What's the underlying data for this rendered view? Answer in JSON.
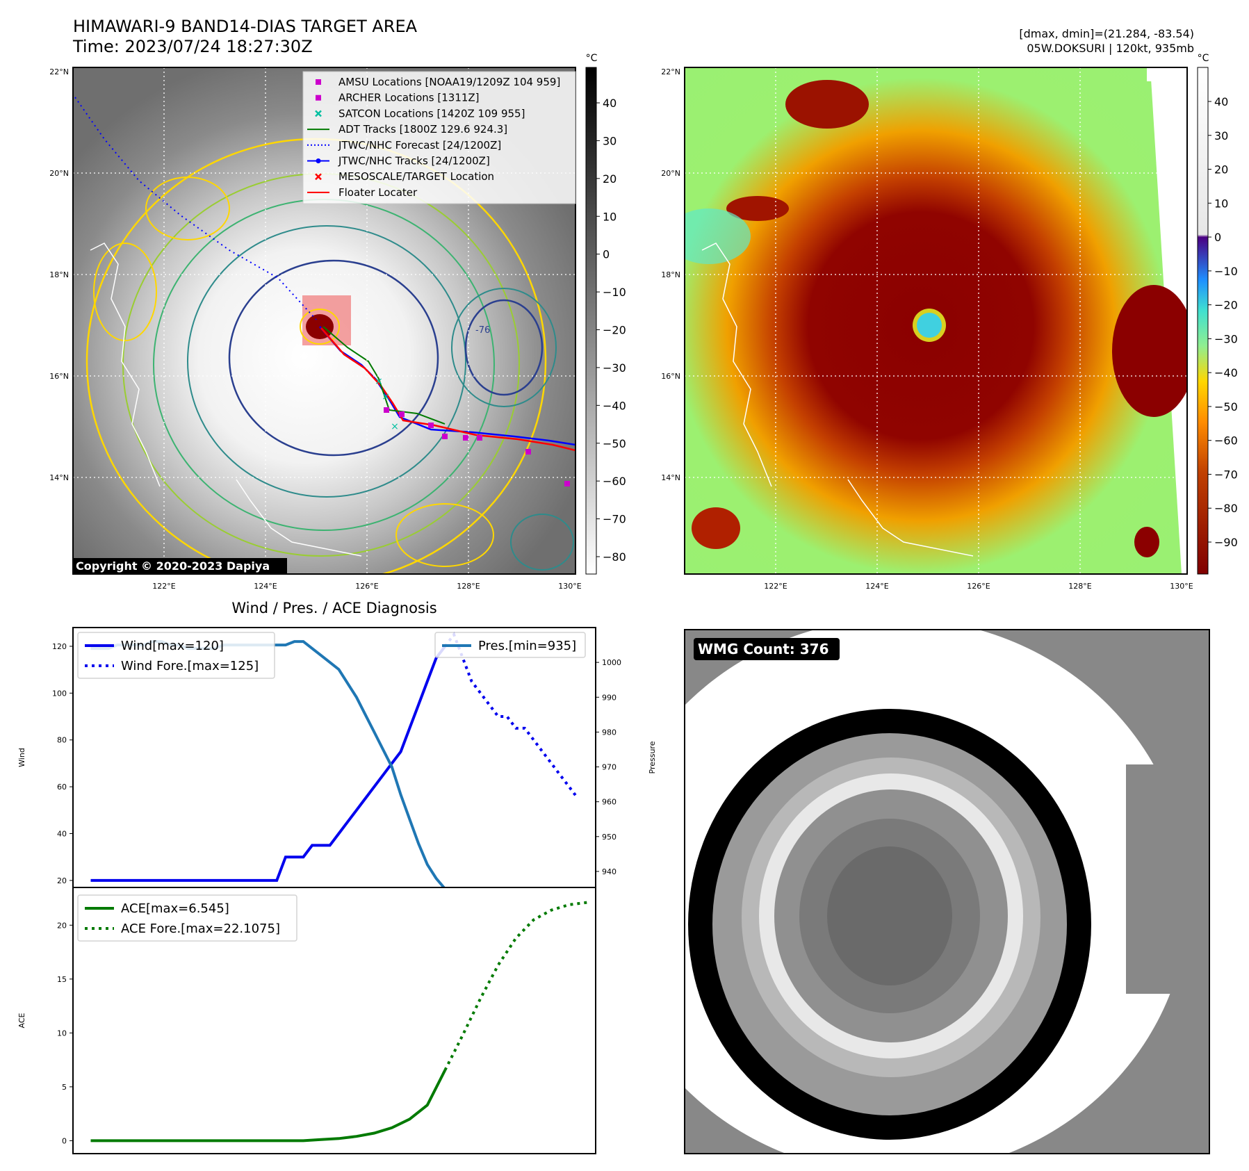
{
  "header": {
    "title": "HIMAWARI-9 BAND14-DIAS TARGET AREA",
    "time": "Time: 2023/07/24 18:27:30Z",
    "dminmax": "[dmax, dmin]=(21.284, -83.54)",
    "storm": "05W.DOKSURI | 120kt, 935mb"
  },
  "ir_panel": {
    "lat_ticks": [
      "22°N",
      "20°N",
      "18°N",
      "16°N",
      "14°N"
    ],
    "lon_ticks": [
      "122°E",
      "124°E",
      "126°E",
      "128°E",
      "130°E"
    ],
    "colorbar_unit": "°C",
    "colorbar_ticks": [
      "40",
      "30",
      "20",
      "10",
      "0",
      "−10",
      "−20",
      "−30",
      "−40",
      "−50",
      "−60",
      "−70",
      "−80"
    ],
    "copyright": "Copyright © 2020-2023 Dapiya",
    "legend": [
      {
        "label": "AMSU Locations [NOAA19/1209Z 104 959]",
        "marker": "square",
        "color": "#cc00cc"
      },
      {
        "label": "ARCHER Locations [1311Z]",
        "marker": "square",
        "color": "#cc00cc"
      },
      {
        "label": "SATCON Locations [1420Z 109 955]",
        "marker": "x",
        "color": "#00bfa0"
      },
      {
        "label": "ADT Tracks [1800Z 129.6 924.3]",
        "marker": "line",
        "color": "#007a00"
      },
      {
        "label": "JTWC/NHC Forecast [24/1200Z]",
        "marker": "dotted",
        "color": "#0000ff"
      },
      {
        "label": "JTWC/NHC Tracks [24/1200Z]",
        "marker": "line-dot",
        "color": "#0000ff"
      },
      {
        "label": "MESOSCALE/TARGET Location",
        "marker": "x",
        "color": "#ff0000"
      },
      {
        "label": "Floater Locater",
        "marker": "line",
        "color": "#ff0000"
      }
    ],
    "contour_label": "-76"
  },
  "color_panel": {
    "lat_ticks": [
      "22°N",
      "20°N",
      "18°N",
      "16°N",
      "14°N"
    ],
    "lon_ticks": [
      "122°E",
      "124°E",
      "126°E",
      "128°E",
      "130°E"
    ],
    "colorbar_unit": "°C",
    "colorbar_ticks": [
      "40",
      "30",
      "20",
      "10",
      "0",
      "−10",
      "−20",
      "−30",
      "−40",
      "−50",
      "−60",
      "−70",
      "−80",
      "−90"
    ]
  },
  "wmg_panel": {
    "label": "WMG Count: 376"
  },
  "chart_data": [
    {
      "type": "line",
      "title": "Wind / Pres. / ACE Diagnosis",
      "ylabel": "Wind",
      "ylabel_right": "Pressure",
      "ylim": [
        17,
        128
      ],
      "ylim_right": [
        935.4,
        1010.0
      ],
      "yticks": [
        20,
        40,
        60,
        80,
        100,
        120
      ],
      "yticks_right": [
        940,
        950,
        960,
        970,
        980,
        990,
        1000
      ],
      "x": [
        0,
        1,
        2,
        3,
        4,
        5,
        6,
        7,
        8,
        9,
        10,
        11,
        12,
        13,
        14,
        15,
        16,
        17,
        18,
        19,
        20,
        21,
        22,
        23,
        24,
        25,
        26,
        27,
        28,
        29,
        30,
        31,
        32,
        33,
        34,
        35,
        36,
        37,
        38,
        39,
        40,
        41,
        42,
        43,
        44,
        45,
        46,
        47,
        48,
        49,
        50,
        51,
        52,
        53,
        54,
        55
      ],
      "series": [
        {
          "name": "Wind[max=120]",
          "color": "#0000ee",
          "style": "solid",
          "x": [
            0,
            1,
            2,
            3,
            4,
            5,
            6,
            7,
            8,
            9,
            10,
            11,
            12,
            13,
            14,
            15,
            16,
            17,
            18,
            19,
            20,
            21,
            22,
            23,
            24,
            25,
            26,
            27,
            28,
            29,
            30,
            31,
            32,
            33,
            34,
            35,
            36,
            37,
            38,
            39,
            40
          ],
          "values": [
            20,
            20,
            20,
            20,
            20,
            20,
            20,
            20,
            20,
            20,
            20,
            20,
            20,
            20,
            20,
            20,
            20,
            20,
            20,
            20,
            20,
            20,
            30,
            30,
            30,
            35,
            35,
            35,
            40,
            45,
            50,
            55,
            60,
            65,
            70,
            75,
            85,
            95,
            105,
            115,
            120
          ]
        },
        {
          "name": "Wind Fore.[max=125]",
          "color": "#0000ee",
          "style": "dotted",
          "x": [
            40,
            41,
            42,
            43,
            44,
            45,
            46,
            47,
            48,
            49,
            50,
            51,
            52,
            53,
            54,
            55
          ],
          "values": [
            120,
            125,
            115,
            105,
            100,
            95,
            90,
            90,
            85,
            85,
            80,
            75,
            70,
            65,
            60,
            55
          ]
        },
        {
          "name": "Pres.[min=935]",
          "color": "#1f77b4",
          "style": "solid",
          "x": [
            0,
            1,
            2,
            3,
            4,
            5,
            6,
            7,
            8,
            9,
            10,
            11,
            12,
            13,
            14,
            15,
            16,
            17,
            18,
            19,
            20,
            21,
            22,
            23,
            24,
            25,
            26,
            27,
            28,
            29,
            30,
            31,
            32,
            33,
            34,
            35,
            36,
            37,
            38,
            39,
            40
          ],
          "values": [
            1004,
            1004,
            1004,
            1005,
            1005,
            1005,
            1005,
            1006,
            1006,
            1005,
            1005,
            1004,
            1004,
            1004,
            1004,
            1005,
            1005,
            1005,
            1005,
            1005,
            1005,
            1005,
            1005,
            1006,
            1006,
            1004,
            1002,
            1000,
            998,
            994,
            990,
            985,
            980,
            975,
            970,
            962,
            955,
            948,
            942,
            938,
            935
          ]
        }
      ]
    },
    {
      "type": "line",
      "ylabel": "ACE",
      "ylim": [
        -1.2,
        23.5
      ],
      "yticks": [
        0,
        5,
        10,
        15,
        20
      ],
      "series": [
        {
          "name": "ACE[max=6.545]",
          "color": "#007a00",
          "style": "solid",
          "x": [
            0,
            4,
            8,
            12,
            16,
            20,
            24,
            26,
            28,
            30,
            32,
            34,
            36,
            38,
            40
          ],
          "values": [
            0,
            0,
            0,
            0,
            0,
            0,
            0,
            0.1,
            0.2,
            0.4,
            0.7,
            1.2,
            2.0,
            3.3,
            6.545
          ]
        },
        {
          "name": "ACE Fore.[max=22.1075]",
          "color": "#007a00",
          "style": "dotted",
          "x": [
            40,
            42,
            44,
            46,
            48,
            50,
            52,
            54,
            56
          ],
          "values": [
            6.545,
            9.8,
            13.2,
            16.3,
            18.8,
            20.5,
            21.4,
            21.9,
            22.1075
          ]
        }
      ]
    }
  ]
}
